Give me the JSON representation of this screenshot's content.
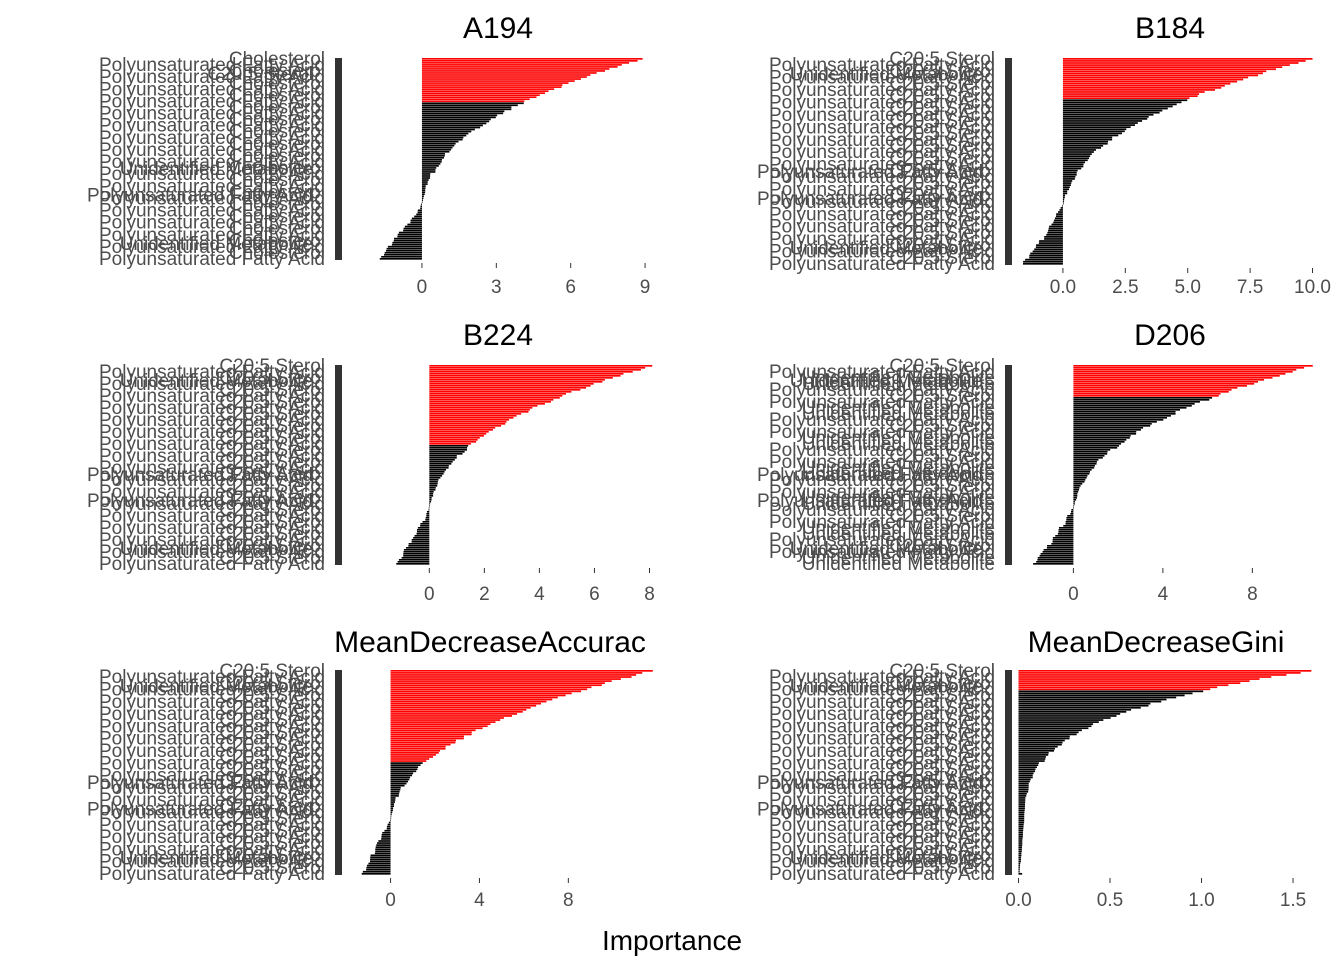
{
  "x_axis_title": "Importance",
  "chart_data": [
    {
      "type": "bar",
      "orientation": "horizontal",
      "title": "A194",
      "xlim": [
        -2.7,
        9.4
      ],
      "xticks": [
        {
          "value": 0,
          "label": "0"
        },
        {
          "value": 3,
          "label": "3"
        },
        {
          "value": 6,
          "label": "6"
        },
        {
          "value": 9,
          "label": "9"
        }
      ],
      "highlight_color": "#ff0000",
      "base_color": "#000000",
      "n_bars": 100,
      "n_highlight": 22,
      "max_value": 8.9,
      "min_value": -1.7,
      "visible_category_labels": [
        "Cholesterol",
        "C20:5 Sterol",
        "Unidentified Metabolite",
        "Polyunsaturated Fatty Acid",
        "Unidentified Metabolite",
        "Acid"
      ]
    },
    {
      "type": "bar",
      "orientation": "horizontal",
      "title": "B184",
      "xlim": [
        -2.0,
        10.1
      ],
      "xticks": [
        {
          "value": 0,
          "label": "0.0"
        },
        {
          "value": 2.5,
          "label": "2.5"
        },
        {
          "value": 5,
          "label": "5.0"
        },
        {
          "value": 7.5,
          "label": "7.5"
        },
        {
          "value": 10,
          "label": "10.0"
        }
      ],
      "highlight_color": "#ff0000",
      "base_color": "#000000",
      "n_bars": 100,
      "n_highlight": 20,
      "max_value": 10.0,
      "min_value": -1.6,
      "visible_category_labels": [
        "C20:5 Sterol",
        "Unidentified Metabolite",
        "Polyunsaturated Fatty Acid",
        "Polyunsaturated Fatty Acid",
        "Unidentified Metabolite",
        "Unidentified Metabolite"
      ]
    },
    {
      "type": "bar",
      "orientation": "horizontal",
      "title": "B224",
      "xlim": [
        -2.7,
        8.2
      ],
      "xticks": [
        {
          "value": 0,
          "label": "0"
        },
        {
          "value": 2,
          "label": "2"
        },
        {
          "value": 4,
          "label": "4"
        },
        {
          "value": 6,
          "label": "6"
        },
        {
          "value": 8,
          "label": "8"
        }
      ],
      "highlight_color": "#ff0000",
      "base_color": "#000000",
      "n_bars": 100,
      "n_highlight": 40,
      "max_value": 8.1,
      "min_value": -1.2,
      "visible_category_labels": [
        "C20:5 Sterol",
        "Unidentified Metabolite",
        "Polyunsaturated Fatty Acid",
        "Polyunsaturated Fatty Acid",
        "Unidentified Metabolite",
        "C18 Fatty Acid"
      ]
    },
    {
      "type": "bar",
      "orientation": "horizontal",
      "title": "D206",
      "xlim": [
        -2.7,
        10.8
      ],
      "xticks": [
        {
          "value": 0,
          "label": "0"
        },
        {
          "value": 4,
          "label": "4"
        },
        {
          "value": 8,
          "label": "8"
        }
      ],
      "highlight_color": "#ff0000",
      "base_color": "#000000",
      "n_bars": 100,
      "n_highlight": 16,
      "max_value": 10.7,
      "min_value": -1.8,
      "visible_category_labels": [
        "C20:5 Sterol",
        "Unidentified Metabolite",
        "Polyunsaturated Fatty Acid",
        "Polyunsaturated Fatty Acid",
        "Unidentified Metabolite"
      ]
    },
    {
      "type": "bar",
      "orientation": "horizontal",
      "title": "MeanDecreaseAccurac",
      "xlim": [
        -1.6,
        11.9
      ],
      "xticks": [
        {
          "value": 0,
          "label": "0"
        },
        {
          "value": 4,
          "label": "4"
        },
        {
          "value": 8,
          "label": "8"
        }
      ],
      "highlight_color": "#ff0000",
      "base_color": "#000000",
      "n_bars": 100,
      "n_highlight": 45,
      "max_value": 11.8,
      "min_value": -1.3,
      "visible_category_labels": [
        "C20:5 Sterol",
        "Unidentified Metabolite",
        "Polyunsaturated Fatty Acid",
        "Polyunsaturated Fatty Acid",
        "Unidentified Metabolite",
        "Unidentified Metabolite"
      ]
    },
    {
      "type": "bar",
      "orientation": "horizontal",
      "title": "MeanDecreaseGini",
      "xlim": [
        -0.03,
        1.62
      ],
      "xticks": [
        {
          "value": 0,
          "label": "0.0"
        },
        {
          "value": 0.5,
          "label": "0.5"
        },
        {
          "value": 1.0,
          "label": "1.0"
        },
        {
          "value": 1.5,
          "label": "1.5"
        }
      ],
      "highlight_color": "#ff0000",
      "base_color": "#000000",
      "n_bars": 100,
      "n_highlight": 10,
      "max_value": 1.6,
      "min_value": 0.02,
      "visible_category_labels": [
        "C20:5 Sterol",
        "Unidentified Metabolite",
        "Polyunsaturated Fatty Acid",
        "Polyunsaturated Fatty Acid",
        "Unidentified Metabolite",
        "Amino Acid"
      ]
    }
  ]
}
